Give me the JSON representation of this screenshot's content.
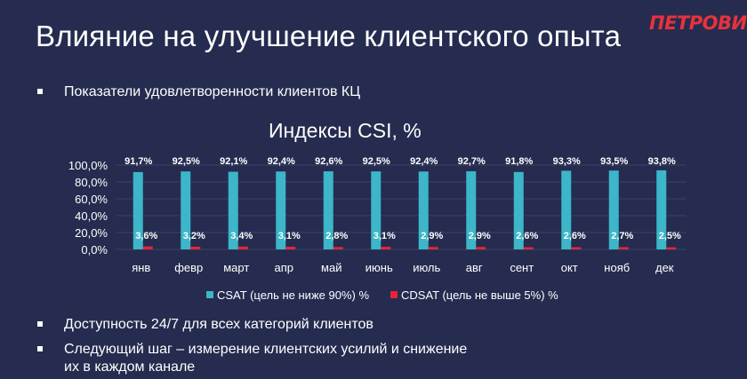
{
  "slide": {
    "title": "Влияние на улучшение клиентского опыта",
    "logo": "ПЕТРОВИЧ",
    "bullets": [
      "Показатели удовлетворенности клиентов КЦ",
      "Доступность 24/7 для всех категорий клиентов",
      "Следующий шаг – измерение клиентских усилий и снижение их в каждом канале"
    ]
  },
  "colors": {
    "background": "#252c4f",
    "csat": "#3cb6c8",
    "cdsat": "#e6243a",
    "gridline": "#3a4266",
    "text": "#ffffff",
    "logo": "#e8323c"
  },
  "chart_data": {
    "type": "bar",
    "title": "Индексы CSI, %",
    "categories": [
      "янв",
      "февр",
      "март",
      "апр",
      "май",
      "июнь",
      "июль",
      "авг",
      "сент",
      "окт",
      "нояб",
      "дек"
    ],
    "series": [
      {
        "name": "CSAT (цель не ниже 90%) %",
        "values": [
          91.7,
          92.5,
          92.1,
          92.4,
          92.6,
          92.5,
          92.4,
          92.7,
          91.8,
          93.3,
          93.5,
          93.8
        ],
        "labels": [
          "91,7%",
          "92,5%",
          "92,1%",
          "92,4%",
          "92,6%",
          "92,5%",
          "92,4%",
          "92,7%",
          "91,8%",
          "93,3%",
          "93,5%",
          "93,8%"
        ]
      },
      {
        "name": "CDSAT (цель не выше 5%) %",
        "values": [
          3.6,
          3.2,
          3.4,
          3.1,
          2.8,
          3.1,
          2.9,
          2.9,
          2.6,
          2.6,
          2.7,
          2.5
        ],
        "labels": [
          "3,6%",
          "3,2%",
          "3,4%",
          "3,1%",
          "2,8%",
          "3,1%",
          "2,9%",
          "2,9%",
          "2,6%",
          "2,6%",
          "2,7%",
          "2,5%"
        ]
      }
    ],
    "yticks": [
      "0,0%",
      "20,0%",
      "40,0%",
      "60,0%",
      "80,0%",
      "100,0%"
    ],
    "ylim": [
      0,
      100
    ],
    "grid": true,
    "legend": "bottom"
  }
}
